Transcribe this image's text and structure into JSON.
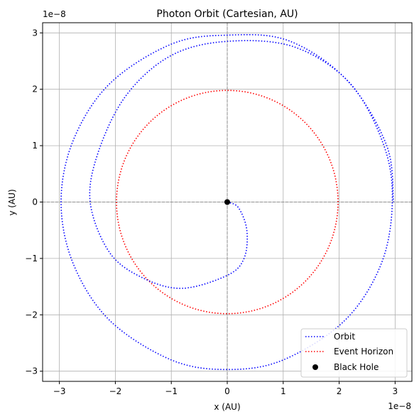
{
  "chart_data": {
    "type": "line",
    "title": "Photon Orbit (Cartesian, AU)",
    "xlabel": "x (AU)",
    "ylabel": "y (AU)",
    "x_offset_text": "1e−8",
    "y_offset_text": "1e−8",
    "xlim": [
      -3.3,
      3.3
    ],
    "ylim": [
      -3.18,
      3.18
    ],
    "xticks": [
      -3,
      -2,
      -1,
      0,
      1,
      2,
      3
    ],
    "yticks": [
      -3,
      -2,
      -1,
      0,
      1,
      2,
      3
    ],
    "xtick_labels": [
      "−3",
      "−2",
      "−1",
      "0",
      "1",
      "2",
      "3"
    ],
    "ytick_labels": [
      "−3",
      "−2",
      "−1",
      "0",
      "1",
      "2",
      "3"
    ],
    "grid": true,
    "reference_lines": {
      "x": 0,
      "y": 0
    },
    "legend_position": "lower-right",
    "series": [
      {
        "name": "Orbit",
        "style": "dotted",
        "color": "#0000ff",
        "description_points": [
          [
            0.0,
            0.0
          ],
          [
            0.2,
            -0.1
          ],
          [
            0.35,
            -0.5
          ],
          [
            0.3,
            -1.0
          ],
          [
            0.0,
            -1.3
          ],
          [
            -0.8,
            -1.53
          ],
          [
            -1.5,
            -1.35
          ],
          [
            -2.1,
            -0.9
          ],
          [
            -2.45,
            0.0
          ],
          [
            -2.3,
            0.9
          ],
          [
            -1.8,
            1.9
          ],
          [
            -1.0,
            2.6
          ],
          [
            0.0,
            2.85
          ],
          [
            1.2,
            2.75
          ],
          [
            2.2,
            2.1
          ],
          [
            2.8,
            1.0
          ],
          [
            2.95,
            0.0
          ],
          [
            2.75,
            -1.1
          ],
          [
            2.1,
            -2.1
          ],
          [
            1.0,
            -2.8
          ],
          [
            0.0,
            -2.97
          ],
          [
            -1.0,
            -2.8
          ],
          [
            -2.1,
            -2.1
          ],
          [
            -2.75,
            -1.1
          ],
          [
            -2.97,
            0.0
          ],
          [
            -2.75,
            1.1
          ],
          [
            -2.1,
            2.1
          ],
          [
            -1.0,
            2.8
          ],
          [
            0.0,
            2.96
          ],
          [
            1.1,
            2.86
          ],
          [
            2.15,
            2.15
          ],
          [
            2.85,
            1.0
          ],
          [
            2.97,
            0.0
          ]
        ]
      },
      {
        "name": "Event Horizon",
        "style": "dotted",
        "color": "#ff0000",
        "radius": 1.98,
        "center": [
          0,
          0
        ]
      },
      {
        "name": "Black Hole",
        "style": "marker",
        "color": "#000000",
        "x": [
          0
        ],
        "y": [
          0
        ]
      }
    ]
  }
}
